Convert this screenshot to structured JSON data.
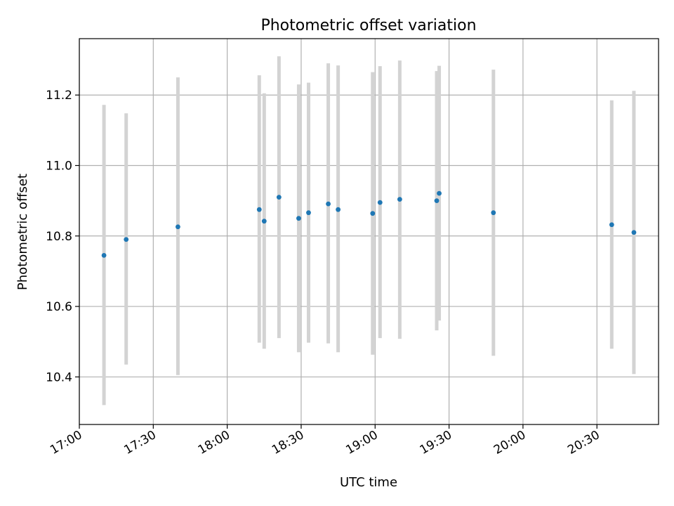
{
  "chart_data": {
    "type": "scatter",
    "title": "Photometric offset variation",
    "xlabel": "UTC time",
    "ylabel": "Photometric offset",
    "xlim": [
      "17:00",
      "20:55"
    ],
    "ylim": [
      10.265,
      11.36
    ],
    "grid": true,
    "x_ticks": [
      "17:00",
      "17:30",
      "18:00",
      "18:30",
      "19:00",
      "19:30",
      "20:00",
      "20:30"
    ],
    "y_ticks": [
      "10.4",
      "10.6",
      "10.8",
      "11.0",
      "11.2"
    ],
    "error_color": "#d3d3d3",
    "point_color": "#1f77b4",
    "points": [
      {
        "x": "17:10",
        "y": 10.745,
        "err_low": 10.32,
        "err_high": 11.172
      },
      {
        "x": "17:19",
        "y": 10.79,
        "err_low": 10.435,
        "err_high": 11.148
      },
      {
        "x": "17:40",
        "y": 10.826,
        "err_low": 10.405,
        "err_high": 11.25
      },
      {
        "x": "18:13",
        "y": 10.875,
        "err_low": 10.497,
        "err_high": 11.256
      },
      {
        "x": "18:15",
        "y": 10.842,
        "err_low": 10.48,
        "err_high": 11.205
      },
      {
        "x": "18:21",
        "y": 10.91,
        "err_low": 10.51,
        "err_high": 11.31
      },
      {
        "x": "18:29",
        "y": 10.85,
        "err_low": 10.47,
        "err_high": 11.23
      },
      {
        "x": "18:33",
        "y": 10.866,
        "err_low": 10.497,
        "err_high": 11.235
      },
      {
        "x": "18:41",
        "y": 10.891,
        "err_low": 10.495,
        "err_high": 11.29
      },
      {
        "x": "18:45",
        "y": 10.875,
        "err_low": 10.47,
        "err_high": 11.284
      },
      {
        "x": "18:59",
        "y": 10.864,
        "err_low": 10.463,
        "err_high": 11.265
      },
      {
        "x": "19:02",
        "y": 10.895,
        "err_low": 10.51,
        "err_high": 11.282
      },
      {
        "x": "19:10",
        "y": 10.904,
        "err_low": 10.508,
        "err_high": 11.298
      },
      {
        "x": "19:25",
        "y": 10.9,
        "err_low": 10.532,
        "err_high": 11.268
      },
      {
        "x": "19:26",
        "y": 10.921,
        "err_low": 10.56,
        "err_high": 11.283
      },
      {
        "x": "19:48",
        "y": 10.866,
        "err_low": 10.46,
        "err_high": 11.272
      },
      {
        "x": "20:36",
        "y": 10.832,
        "err_low": 10.48,
        "err_high": 11.185
      },
      {
        "x": "20:45",
        "y": 10.81,
        "err_low": 10.408,
        "err_high": 11.212
      }
    ]
  }
}
